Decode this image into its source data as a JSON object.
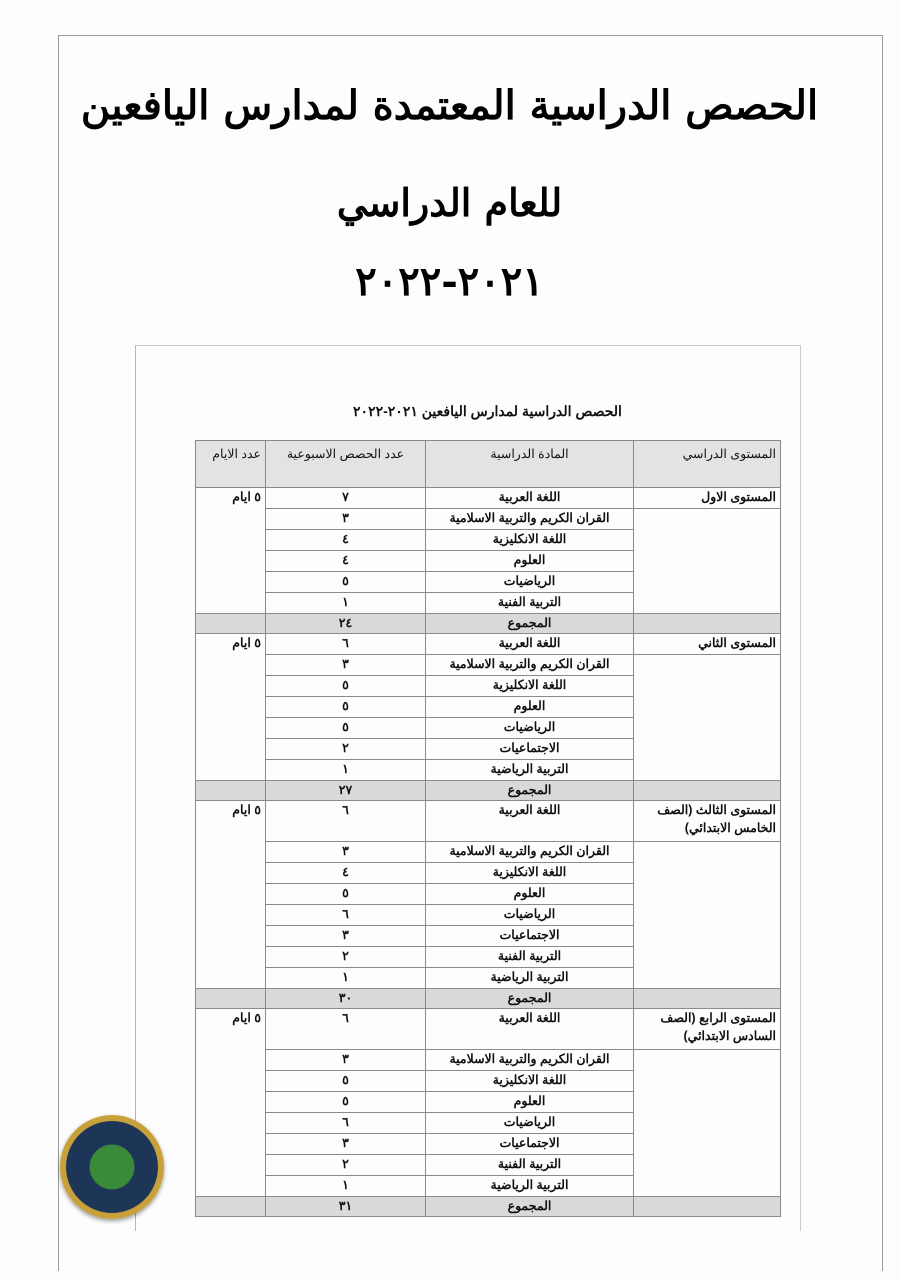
{
  "title": {
    "line1": "الحصص الدراسية المعتمدة لمدارس اليافعين",
    "line2": "للعام الدراسي",
    "line3": "٢٠٢١-٢٠٢٢"
  },
  "table": {
    "caption": "الحصص الدراسية لمدارس اليافعين ٢٠٢١-٢٠٢٢",
    "headers": {
      "level": "المستوى الدراسي",
      "subject": "المادة الدراسية",
      "periods": "عدد الحصص الاسبوعية",
      "days": "عدد الايام"
    },
    "total_label": "المجموع",
    "levels": [
      {
        "name": "المستوى الاول",
        "days": "٥ ايام",
        "total": "٢٤",
        "tall": false,
        "rows": [
          [
            "اللغة العربية",
            "٧"
          ],
          [
            "القران الكريم والتربية الاسلامية",
            "٣"
          ],
          [
            "اللغة الانكليزية",
            "٤"
          ],
          [
            "العلوم",
            "٤"
          ],
          [
            "الرياضيات",
            "٥"
          ],
          [
            "التربية الفنية",
            "١"
          ]
        ]
      },
      {
        "name": "المستوى الثاني",
        "days": "٥ ايام",
        "total": "٢٧",
        "tall": false,
        "rows": [
          [
            "اللغة العربية",
            "٦"
          ],
          [
            "القران الكريم والتربية الاسلامية",
            "٣"
          ],
          [
            "اللغة الانكليزية",
            "٥"
          ],
          [
            "العلوم",
            "٥"
          ],
          [
            "الرياضيات",
            "٥"
          ],
          [
            "الاجتماعيات",
            "٢"
          ],
          [
            "التربية الرياضية",
            "١"
          ]
        ]
      },
      {
        "name": "المستوى الثالث (الصف الخامس الابتدائي)",
        "days": "٥ ايام",
        "total": "٣٠",
        "tall": true,
        "rows": [
          [
            "اللغة العربية",
            "٦"
          ],
          [
            "القران الكريم والتربية الاسلامية",
            "٣"
          ],
          [
            "اللغة الانكليزية",
            "٤"
          ],
          [
            "العلوم",
            "٥"
          ],
          [
            "الرياضيات",
            "٦"
          ],
          [
            "الاجتماعيات",
            "٣"
          ],
          [
            "التربية الفنية",
            "٢"
          ],
          [
            "التربية الرياضية",
            "١"
          ]
        ]
      },
      {
        "name": "المستوى الرابع (الصف السادس الابتدائي)",
        "days": "٥ ايام",
        "total": "٣١",
        "tall": true,
        "rows": [
          [
            "اللغة العربية",
            "٦"
          ],
          [
            "القران الكريم والتربية الاسلامية",
            "٣"
          ],
          [
            "اللغة الانكليزية",
            "٥"
          ],
          [
            "العلوم",
            "٥"
          ],
          [
            "الرياضيات",
            "٦"
          ],
          [
            "الاجتماعيات",
            "٣"
          ],
          [
            "التربية الفنية",
            "٢"
          ],
          [
            "التربية الرياضية",
            "١"
          ]
        ]
      }
    ]
  },
  "emblem": {
    "name": "ministry-emblem"
  }
}
